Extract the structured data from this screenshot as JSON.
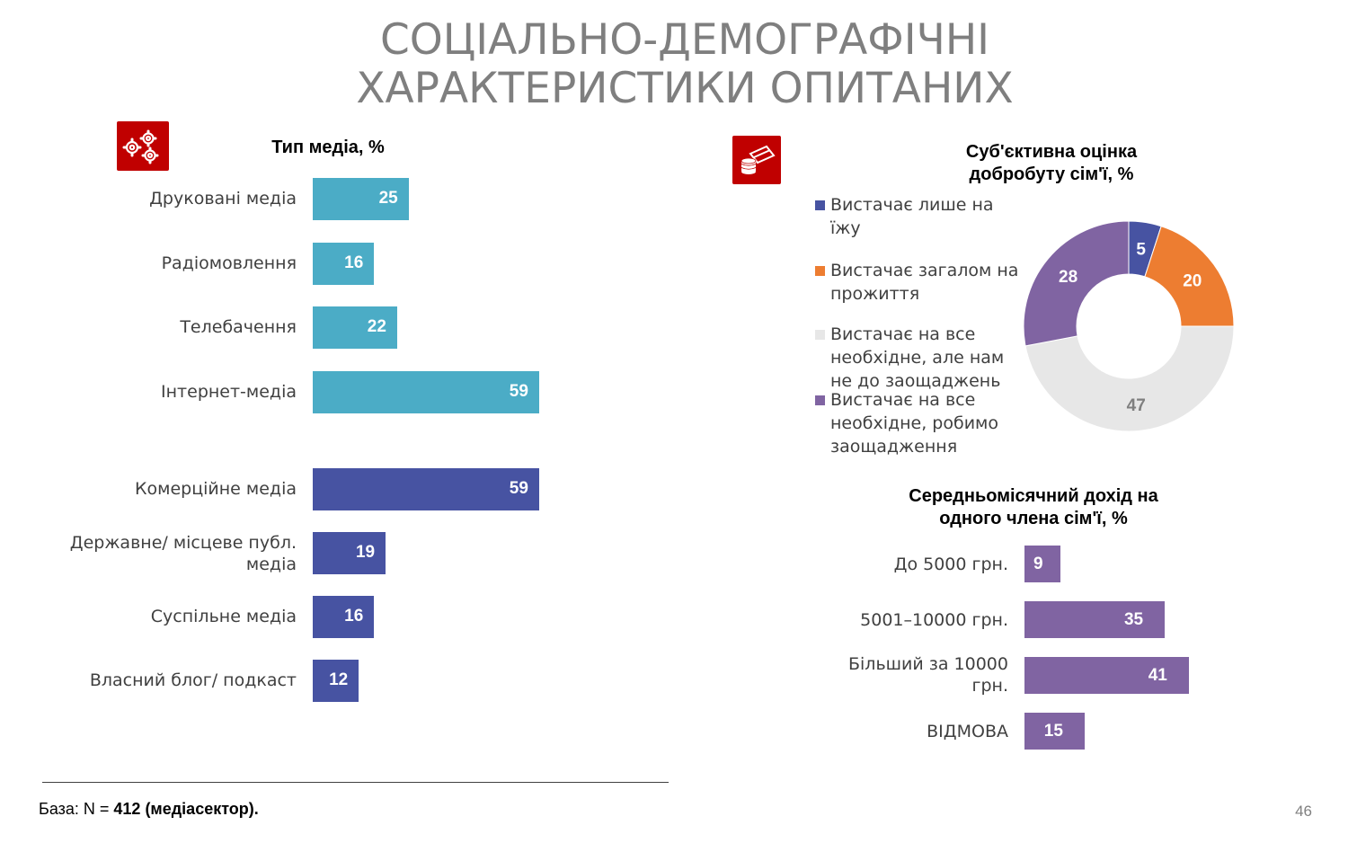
{
  "title": {
    "line1": "СОЦІАЛЬНО-ДЕМОГРАФІЧНІ",
    "line2": "ХАРАКТЕРИСТИКИ ОПИТАНИХ"
  },
  "icons": {
    "media": "gears-icon",
    "welfare": "money-coins-icon"
  },
  "chart_data": [
    {
      "type": "bar",
      "orientation": "horizontal",
      "title": "Тип медіа, %",
      "categories": [
        "Друковані медіа",
        "Радіомовлення",
        "Телебачення",
        "Інтернет-медіа",
        "Комерційне медіа",
        "Державне/ місцеве публ. медіа",
        "Суспільне медіа",
        "Власний блог/ подкаст"
      ],
      "values": [
        25,
        16,
        22,
        59,
        59,
        19,
        16,
        12
      ],
      "colors": [
        "#4bacc6",
        "#4bacc6",
        "#4bacc6",
        "#4bacc6",
        "#4753a2",
        "#4753a2",
        "#4753a2",
        "#4753a2"
      ],
      "xlim": [
        0,
        100
      ]
    },
    {
      "type": "pie",
      "style": "donut",
      "title": "Суб'єктивна оцінка добробуту сім'ї, %",
      "labels": [
        "Вистачає лише на їжу",
        "Вистачає загалом на прожиття",
        "Вистачає на все необхідне, але нам не до заощаджень",
        "Вистачає на все необхідне, робимо заощадження"
      ],
      "values": [
        5,
        20,
        47,
        28
      ],
      "colors": [
        "#4753a2",
        "#ed7d31",
        "#e7e7e7",
        "#8064a2"
      ],
      "label_colors": [
        "#ffffff",
        "#ffffff",
        "#7f7f7f",
        "#ffffff"
      ],
      "legend": "left"
    },
    {
      "type": "bar",
      "orientation": "horizontal",
      "title": "Середньомісячний дохід на одного члена сім'ї, %",
      "categories": [
        "До 5000 грн.",
        "5001–10000 грн.",
        "Більший за 10000 грн.",
        "ВІДМОВА"
      ],
      "values": [
        9,
        35,
        41,
        15
      ],
      "color": "#8064a2",
      "xlim": [
        0,
        100
      ]
    }
  ],
  "footer": {
    "base_prefix": "База: N = ",
    "base_value": "412 (медіасектор)."
  },
  "page_number": "46"
}
